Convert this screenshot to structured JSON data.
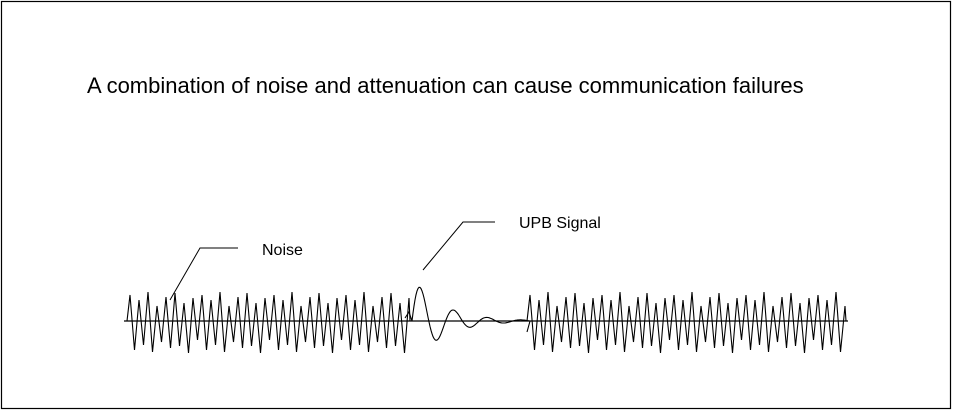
{
  "title": "A combination of noise and attenuation can cause communication failures",
  "labels": {
    "noise": "Noise",
    "signal": "UPB Signal"
  }
}
